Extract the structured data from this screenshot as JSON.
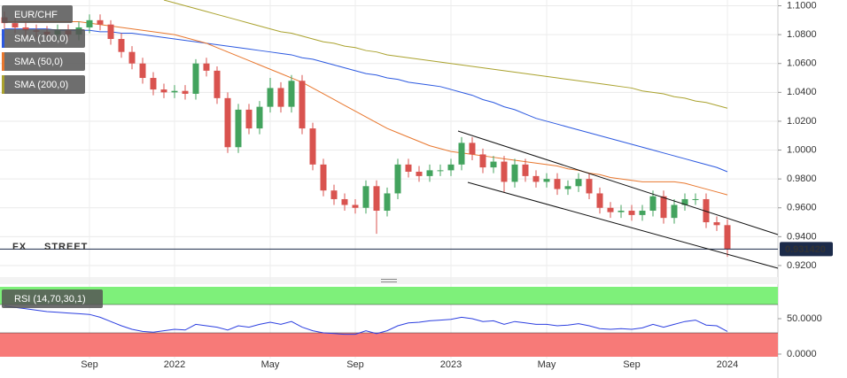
{
  "chart_data": [
    {
      "type": "candlestick",
      "symbol": "EUR/CHF",
      "categories": [
        null,
        null,
        null,
        null,
        null,
        null,
        null,
        null,
        "Sep",
        null,
        null,
        null,
        null,
        null,
        null,
        null,
        "2022",
        null,
        null,
        null,
        null,
        null,
        null,
        null,
        null,
        "May",
        null,
        null,
        null,
        null,
        null,
        null,
        null,
        "Sep",
        null,
        null,
        null,
        null,
        null,
        null,
        null,
        null,
        "2023",
        null,
        null,
        null,
        null,
        null,
        null,
        null,
        null,
        "May",
        null,
        null,
        null,
        null,
        null,
        null,
        null,
        "Sep",
        null,
        null,
        null,
        null,
        null,
        null,
        null,
        null,
        "2024"
      ],
      "open": [
        1.092,
        1.088,
        1.085,
        1.083,
        1.082,
        1.08,
        1.083,
        1.08,
        1.085,
        1.09,
        1.087,
        1.077,
        1.068,
        1.06,
        1.05,
        1.042,
        1.04,
        1.041,
        1.039,
        1.06,
        1.055,
        1.036,
        1.002,
        1.028,
        1.015,
        1.03,
        1.043,
        1.03,
        1.048,
        1.015,
        0.99,
        0.972,
        0.966,
        0.962,
        0.96,
        0.975,
        0.958,
        0.97,
        0.99,
        0.985,
        0.982,
        0.986,
        0.986,
        0.99,
        1.005,
        0.997,
        0.988,
        0.992,
        0.978,
        0.99,
        0.982,
        0.978,
        0.98,
        0.973,
        0.975,
        0.98,
        0.97,
        0.96,
        0.957,
        0.958,
        0.955,
        0.958,
        0.968,
        0.953,
        0.962,
        0.966,
        0.966,
        0.95,
        0.948
      ],
      "high": [
        1.096,
        1.092,
        1.089,
        1.087,
        1.086,
        1.087,
        1.087,
        1.089,
        1.094,
        1.094,
        1.09,
        1.081,
        1.072,
        1.064,
        1.054,
        1.046,
        1.045,
        1.045,
        1.063,
        1.064,
        1.058,
        1.04,
        1.032,
        1.032,
        1.034,
        1.05,
        1.047,
        1.052,
        1.052,
        1.019,
        0.994,
        0.976,
        0.97,
        0.966,
        0.979,
        0.979,
        0.974,
        0.994,
        0.994,
        0.989,
        0.99,
        0.99,
        0.994,
        1.009,
        1.009,
        1.001,
        0.996,
        0.996,
        0.994,
        0.994,
        0.986,
        0.984,
        0.984,
        0.979,
        0.984,
        0.984,
        0.974,
        0.964,
        0.962,
        0.962,
        0.962,
        0.972,
        0.972,
        0.966,
        0.97,
        0.97,
        0.97,
        0.954,
        0.952
      ],
      "low": [
        1.084,
        1.081,
        1.079,
        1.078,
        1.076,
        1.076,
        1.076,
        1.076,
        1.081,
        1.083,
        1.073,
        1.064,
        1.056,
        1.046,
        1.038,
        1.036,
        1.036,
        1.035,
        1.035,
        1.051,
        1.032,
        0.998,
        0.998,
        1.011,
        1.011,
        1.026,
        1.026,
        1.026,
        1.011,
        0.986,
        0.968,
        0.962,
        0.958,
        0.956,
        0.956,
        0.942,
        0.954,
        0.966,
        0.981,
        0.978,
        0.978,
        0.982,
        0.982,
        0.986,
        0.993,
        0.984,
        0.984,
        0.971,
        0.974,
        0.978,
        0.974,
        0.974,
        0.969,
        0.969,
        0.971,
        0.966,
        0.956,
        0.953,
        0.953,
        0.951,
        0.951,
        0.954,
        0.949,
        0.949,
        0.958,
        0.962,
        0.946,
        0.944,
        0.926
      ],
      "close": [
        1.088,
        1.085,
        1.083,
        1.082,
        1.08,
        1.083,
        1.08,
        1.085,
        1.09,
        1.087,
        1.077,
        1.068,
        1.06,
        1.05,
        1.042,
        1.04,
        1.041,
        1.039,
        1.06,
        1.055,
        1.036,
        1.002,
        1.028,
        1.015,
        1.03,
        1.043,
        1.03,
        1.048,
        1.015,
        0.99,
        0.972,
        0.966,
        0.962,
        0.96,
        0.975,
        0.958,
        0.97,
        0.99,
        0.985,
        0.982,
        0.986,
        0.986,
        0.99,
        1.005,
        0.997,
        0.988,
        0.992,
        0.978,
        0.99,
        0.982,
        0.978,
        0.98,
        0.973,
        0.975,
        0.98,
        0.97,
        0.96,
        0.957,
        0.958,
        0.955,
        0.958,
        0.968,
        0.953,
        0.962,
        0.966,
        0.966,
        0.95,
        0.948,
        0.9314
      ],
      "up_color": "#43a35e",
      "down_color": "#d9534f",
      "series": [
        {
          "name": "SMA (100,0)",
          "color": "#2c59e0",
          "values": [
            1.084,
            1.084,
            1.084,
            1.084,
            1.084,
            1.083,
            1.083,
            1.083,
            1.083,
            1.082,
            1.082,
            1.081,
            1.081,
            1.08,
            1.079,
            1.078,
            1.077,
            1.076,
            1.075,
            1.074,
            1.073,
            1.072,
            1.071,
            1.07,
            1.069,
            1.068,
            1.067,
            1.066,
            1.064,
            1.063,
            1.061,
            1.059,
            1.057,
            1.055,
            1.053,
            1.052,
            1.05,
            1.049,
            1.047,
            1.046,
            1.045,
            1.044,
            1.042,
            1.04,
            1.038,
            1.035,
            1.033,
            1.03,
            1.028,
            1.025,
            1.022,
            1.02,
            1.018,
            1.016,
            1.014,
            1.012,
            1.01,
            1.008,
            1.006,
            1.004,
            1.002,
            1.0,
            0.998,
            0.996,
            0.994,
            0.992,
            0.99,
            0.988,
            0.985
          ]
        },
        {
          "name": "SMA (50,0)",
          "color": "#e8772e",
          "values": [
            1.089,
            1.089,
            1.089,
            1.089,
            1.089,
            1.089,
            1.089,
            1.089,
            1.088,
            1.087,
            1.086,
            1.085,
            1.084,
            1.083,
            1.082,
            1.081,
            1.08,
            1.078,
            1.076,
            1.074,
            1.071,
            1.068,
            1.065,
            1.062,
            1.059,
            1.056,
            1.053,
            1.05,
            1.047,
            1.043,
            1.039,
            1.035,
            1.031,
            1.027,
            1.023,
            1.019,
            1.015,
            1.012,
            1.009,
            1.006,
            1.003,
            1.001,
            0.999,
            0.998,
            0.997,
            0.996,
            0.995,
            0.994,
            0.993,
            0.992,
            0.991,
            0.99,
            0.989,
            0.987,
            0.986,
            0.984,
            0.983,
            0.981,
            0.98,
            0.979,
            0.978,
            0.978,
            0.978,
            0.978,
            0.977,
            0.975,
            0.973,
            0.971,
            0.969
          ]
        },
        {
          "name": "SMA (200,0)",
          "color": "#aaa22e",
          "values": [
            null,
            null,
            null,
            null,
            null,
            null,
            null,
            null,
            null,
            null,
            null,
            null,
            null,
            null,
            null,
            1.104,
            1.102,
            1.1,
            1.098,
            1.096,
            1.094,
            1.092,
            1.09,
            1.088,
            1.086,
            1.084,
            1.082,
            1.081,
            1.079,
            1.077,
            1.075,
            1.074,
            1.072,
            1.071,
            1.069,
            1.068,
            1.066,
            1.065,
            1.064,
            1.063,
            1.062,
            1.061,
            1.06,
            1.059,
            1.058,
            1.057,
            1.056,
            1.055,
            1.054,
            1.053,
            1.052,
            1.051,
            1.05,
            1.049,
            1.048,
            1.047,
            1.046,
            1.045,
            1.044,
            1.043,
            1.041,
            1.04,
            1.039,
            1.037,
            1.036,
            1.034,
            1.033,
            1.031,
            1.029
          ]
        }
      ],
      "ylim": [
        0.912,
        1.104
      ],
      "yticks": [
        {
          "value": 1.1,
          "label": "1.1000"
        },
        {
          "value": 1.08,
          "label": "1.0800"
        },
        {
          "value": 1.06,
          "label": "1.0600"
        },
        {
          "value": 1.04,
          "label": "1.0400"
        },
        {
          "value": 1.02,
          "label": "1.0200"
        },
        {
          "value": 1.0,
          "label": "1.0000"
        },
        {
          "value": 0.98,
          "label": "0.9800"
        },
        {
          "value": 0.96,
          "label": "0.9600"
        },
        {
          "value": 0.94,
          "label": "0.9400"
        },
        {
          "value": 0.92,
          "label": "0.9200"
        }
      ],
      "last_price": {
        "value": 0.93142,
        "label": "0.931420"
      },
      "watermark": [
        "FX",
        "STREET"
      ],
      "grid": true
    },
    {
      "type": "line",
      "name": "RSI (14,70,30,1)",
      "color": "#2c3fe0",
      "values": [
        68,
        66,
        64,
        62,
        60,
        59,
        58,
        57,
        56,
        52,
        46,
        40,
        35,
        32,
        31,
        33,
        35,
        34,
        42,
        40,
        38,
        34,
        40,
        38,
        42,
        45,
        42,
        46,
        38,
        33,
        30,
        29,
        28,
        28,
        33,
        29,
        33,
        40,
        44,
        45,
        47,
        48,
        49,
        52,
        50,
        46,
        47,
        42,
        46,
        44,
        42,
        42,
        40,
        41,
        43,
        40,
        36,
        35,
        36,
        35,
        37,
        42,
        38,
        42,
        46,
        48,
        41,
        40,
        32
      ],
      "ylim": [
        0,
        100
      ],
      "yticks": [
        {
          "value": 50,
          "label": "50.0000"
        },
        {
          "value": 0,
          "label": "0.0000"
        }
      ],
      "overbought": 70,
      "oversold": 30,
      "overbought_color": "#7ef07a",
      "oversold_color": "#f77a78"
    }
  ]
}
